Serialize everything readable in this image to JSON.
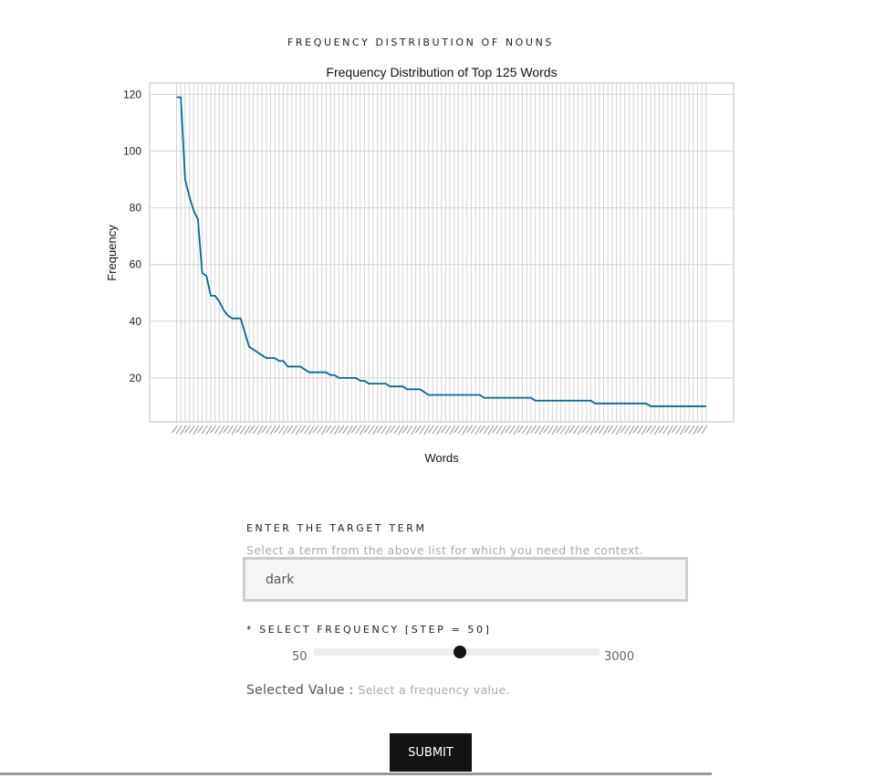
{
  "section_title": "FREQUENCY DISTRIBUTION OF NOUNS",
  "chart_data": {
    "type": "line",
    "title": "Frequency Distribution of Top 125 Words",
    "xlabel": "Words",
    "ylabel": "Frequency",
    "ylim": [
      4.5,
      124
    ],
    "yticks": [
      20,
      40,
      60,
      80,
      100,
      120
    ],
    "grid": true,
    "color": "#006b99",
    "count": 125,
    "values": [
      119,
      119,
      90,
      84,
      79,
      76,
      57,
      56,
      49,
      49,
      47,
      44,
      42,
      41,
      41,
      41,
      36,
      31,
      30,
      29,
      28,
      27,
      27,
      27,
      26,
      26,
      24,
      24,
      24,
      24,
      23,
      22,
      22,
      22,
      22,
      22,
      21,
      21,
      20,
      20,
      20,
      20,
      20,
      19,
      19,
      18,
      18,
      18,
      18,
      18,
      17,
      17,
      17,
      17,
      16,
      16,
      16,
      16,
      15,
      14,
      14,
      14,
      14,
      14,
      14,
      14,
      14,
      14,
      14,
      14,
      14,
      14,
      13,
      13,
      13,
      13,
      13,
      13,
      13,
      13,
      13,
      13,
      13,
      13,
      12,
      12,
      12,
      12,
      12,
      12,
      12,
      12,
      12,
      12,
      12,
      12,
      12,
      12,
      11,
      11,
      11,
      11,
      11,
      11,
      11,
      11,
      11,
      11,
      11,
      11,
      11,
      10,
      10,
      10,
      10,
      10,
      10,
      10,
      10,
      10,
      10,
      10,
      10,
      10,
      10
    ]
  },
  "form": {
    "term_label": "ENTER THE TARGET TERM",
    "term_help": "Select a term from the above list for which you need the context.",
    "term_value": "dark",
    "freq_label": "* SELECT FREQUENCY [STEP = 50]",
    "slider": {
      "min": "50",
      "max": "3000",
      "fraction": 0.51
    },
    "selected_label": "Selected Value :",
    "selected_placeholder": "Select a frequency value.",
    "submit_label": "SUBMIT"
  }
}
